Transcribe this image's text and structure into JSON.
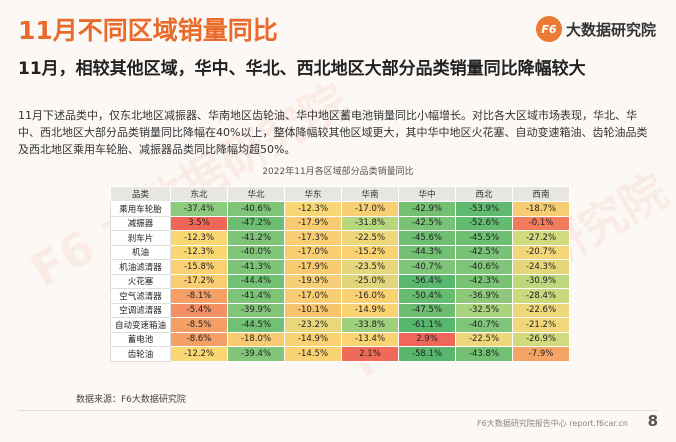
{
  "title": "11月不同区域销量同比",
  "logo": {
    "mark": "F6",
    "name": "大数据研究院"
  },
  "subtitle": "11月，相较其他区域，华中、华北、西北地区大部分品类销量同比降幅较大",
  "paragraph": "11月下述品类中，仅东北地区减振器、华南地区齿轮油、华中地区蓄电池销量同比小幅增长。对比各大区域市场表现，华北、华中、西北地区大部分品类销量同比降幅在40%以上，整体降幅较其他区域更大，其中华中地区火花塞、自动变速箱油、齿轮油品类及西北地区乘用车轮胎、减振器品类同比降幅均超50%。",
  "table_caption": "2022年11月各区域部分品类销量同比",
  "table": {
    "headers": [
      "品类",
      "东北",
      "华北",
      "华东",
      "华南",
      "华中",
      "西北",
      "西南"
    ],
    "rows": [
      {
        "category": "乘用车轮胎",
        "values": [
          "-37.4%",
          "-40.6%",
          "-12.3%",
          "-17.0%",
          "-42.9%",
          "-53.9%",
          "-18.7%"
        ],
        "colors": [
          "#8cca7e",
          "#7fc579",
          "#f7d875",
          "#f9cf73",
          "#73c073",
          "#5fba6f",
          "#f8cc72"
        ]
      },
      {
        "category": "减振器",
        "values": [
          "3.5%",
          "-47.2%",
          "-17.9%",
          "-31.8%",
          "-42.5%",
          "-52.6%",
          "-0.1%"
        ],
        "colors": [
          "#f06658",
          "#6bbd71",
          "#f8cb71",
          "#b6d77c",
          "#77c274",
          "#62bb6f",
          "#f27b5e"
        ]
      },
      {
        "category": "刹车片",
        "values": [
          "-12.3%",
          "-41.2%",
          "-17.3%",
          "-22.5%",
          "-45.6%",
          "-45.5%",
          "-27.2%"
        ],
        "colors": [
          "#f9d874",
          "#7ec478",
          "#f9cd72",
          "#eed77b",
          "#6ebf72",
          "#6ebf72",
          "#d1da7d"
        ]
      },
      {
        "category": "机油",
        "values": [
          "-12.3%",
          "-40.0%",
          "-17.0%",
          "-15.2%",
          "-44.3%",
          "-42.5%",
          "-20.7%"
        ],
        "colors": [
          "#f9d874",
          "#80c578",
          "#f9cd72",
          "#fad272",
          "#72c073",
          "#77c274",
          "#f4d67a"
        ]
      },
      {
        "category": "机油滤清器",
        "values": [
          "-15.8%",
          "-41.3%",
          "-17.9%",
          "-23.5%",
          "-40.7%",
          "-40.6%",
          "-24.3%"
        ],
        "colors": [
          "#fad072",
          "#7dc478",
          "#f8cb71",
          "#e7d67b",
          "#7fc579",
          "#7fc579",
          "#e3d67b"
        ]
      },
      {
        "category": "火花塞",
        "values": [
          "-17.2%",
          "-44.4%",
          "-19.9%",
          "-25.0%",
          "-56.4%",
          "-42.3%",
          "-30.9%"
        ],
        "colors": [
          "#f9cd72",
          "#71c073",
          "#f6d079",
          "#e0d57b",
          "#5ab86e",
          "#78c274",
          "#bcd87c"
        ]
      },
      {
        "category": "空气滤清器",
        "values": [
          "-8.1%",
          "-41.4%",
          "-17.0%",
          "-16.0%",
          "-50.4%",
          "-36.9%",
          "-28.4%"
        ],
        "colors": [
          "#f59e65",
          "#7dc478",
          "#f9cd72",
          "#f9d072",
          "#66bc70",
          "#8ec97b",
          "#cbd97c"
        ]
      },
      {
        "category": "空调滤清器",
        "values": [
          "-5.4%",
          "-39.9%",
          "-10.1%",
          "-14.9%",
          "-47.5%",
          "-32.5%",
          "-22.6%"
        ],
        "colors": [
          "#f49063",
          "#82c579",
          "#f7c46e",
          "#fad272",
          "#6abd71",
          "#a9d37c",
          "#eed77b"
        ]
      },
      {
        "category": "自动变速箱油",
        "values": [
          "-8.5%",
          "-44.5%",
          "-23.2%",
          "-33.8%",
          "-61.1%",
          "-40.7%",
          "-21.2%"
        ],
        "colors": [
          "#f59f66",
          "#71c073",
          "#e9d77b",
          "#9ecf7c",
          "#57b76d",
          "#7fc579",
          "#f2d77a"
        ]
      },
      {
        "category": "蓄电池",
        "values": [
          "-8.6%",
          "-18.0%",
          "-14.9%",
          "-13.4%",
          "2.9%",
          "-22.5%",
          "-26.9%"
        ],
        "colors": [
          "#f5a066",
          "#f8ca71",
          "#fad272",
          "#fbd373",
          "#f0665a",
          "#eed77b",
          "#d3da7d"
        ]
      },
      {
        "category": "齿轮油",
        "values": [
          "-12.2%",
          "-39.4%",
          "-14.5%",
          "2.1%",
          "-58.1%",
          "-43.8%",
          "-7.9%"
        ],
        "colors": [
          "#f9d874",
          "#83c679",
          "#fad272",
          "#f06a5a",
          "#58b76d",
          "#73c073",
          "#f5a466"
        ]
      }
    ]
  },
  "source": "数据来源：F6大数据研究院",
  "footer": "F6大数据研究院报告中心 report.f6car.cn",
  "page_number": "8"
}
